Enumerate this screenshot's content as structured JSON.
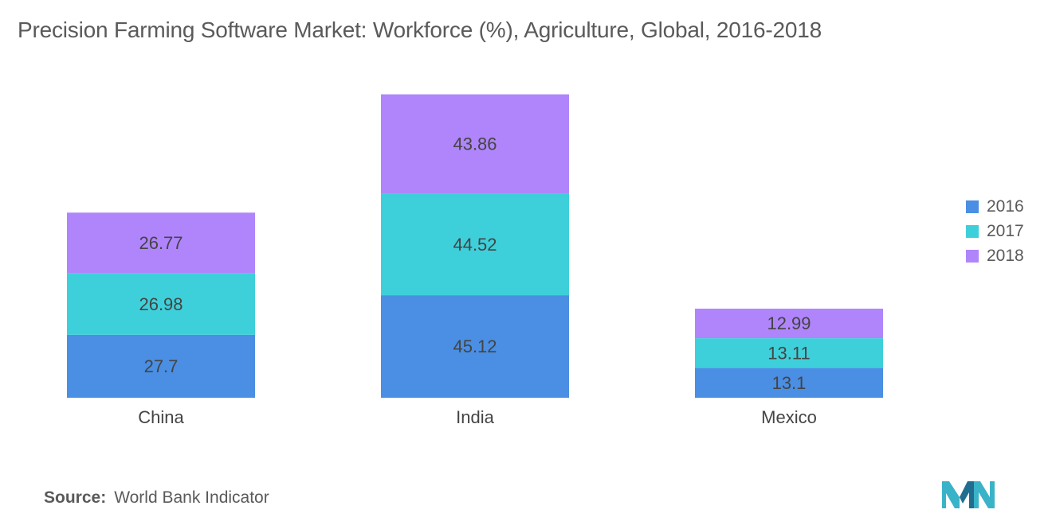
{
  "title": "Precision Farming Software Market: Workforce (%), Agriculture, Global, 2016-2018",
  "source": {
    "label": "Source:",
    "text": "World Bank Indicator"
  },
  "colors": {
    "2016": "#4a8fe3",
    "2017": "#3ed0da",
    "2018": "#b085fb",
    "text": "#5a5a5a",
    "logo": "#3ab3c9"
  },
  "logo_icon": "company-logo-icon",
  "chart_data": {
    "type": "bar",
    "stacked": true,
    "categories": [
      "China",
      "India",
      "Mexico"
    ],
    "series": [
      {
        "name": "2016",
        "values": [
          27.7,
          45.12,
          13.1
        ],
        "labels": [
          "27.7",
          "45.12",
          "13.1"
        ]
      },
      {
        "name": "2017",
        "values": [
          26.98,
          44.52,
          13.11
        ],
        "labels": [
          "26.98",
          "44.52",
          "13.11"
        ]
      },
      {
        "name": "2018",
        "values": [
          26.77,
          43.86,
          12.99
        ],
        "labels": [
          "26.77",
          "43.86",
          "12.99"
        ]
      }
    ],
    "title": "Precision Farming Software Market: Workforce (%), Agriculture, Global, 2016-2018",
    "xlabel": "",
    "ylabel": "",
    "ylim": [
      0,
      140
    ],
    "grid": false,
    "legend": "right",
    "data_labels": true
  }
}
